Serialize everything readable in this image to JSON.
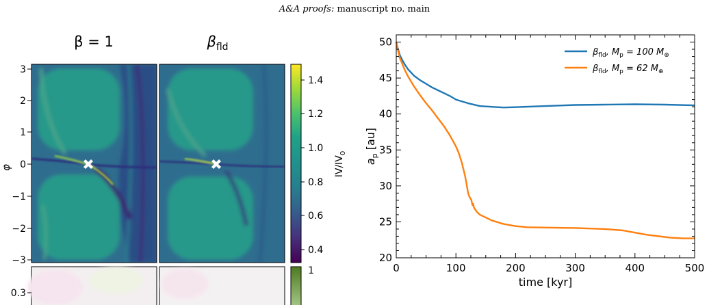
{
  "header": {
    "journal_italic": "A&A proofs:",
    "manuscript": " manuscript no. main"
  },
  "left_figure": {
    "panel_titles": [
      "β = 1",
      "β"
    ],
    "panel_title_sub": "fld",
    "y_axis_label": "φ",
    "y_ticks": [
      "3",
      "2",
      "1",
      "0",
      "−1",
      "−2",
      "−3"
    ],
    "lower_y_tick": "0.3",
    "colorbar_label": "IV/IV",
    "colorbar_label_sub": "0",
    "colorbar_ticks": [
      "1.4",
      "1.2",
      "1.0",
      "0.8",
      "0.6",
      "0.4"
    ],
    "lower_colorbar_tick": "1",
    "colors": {
      "viridis_low": "#440154",
      "viridis_mid": "#21908c",
      "viridis_high": "#fde725",
      "planet_marker": "#ffffff"
    }
  },
  "chart_data": {
    "type": "line",
    "xlabel": "time [kyr]",
    "ylabel_main": "a",
    "ylabel_sub": "p",
    "ylabel_unit": " [au]",
    "xlim": [
      0,
      500
    ],
    "ylim": [
      20,
      51
    ],
    "x_ticks": [
      0,
      100,
      200,
      300,
      400,
      500
    ],
    "y_ticks": [
      20,
      25,
      30,
      35,
      40,
      45,
      50
    ],
    "legend_placement": "top-right",
    "series": [
      {
        "legend_beta": "β",
        "legend_sub": "fld",
        "legend_mass": ", M",
        "legend_mass_sub": "p",
        "legend_value": " = 100 M",
        "legend_unit": "⊕",
        "color": "#1f77b4",
        "x": [
          0,
          3,
          6,
          10,
          15,
          20,
          30,
          40,
          50,
          60,
          70,
          80,
          90,
          100,
          120,
          140,
          160,
          180,
          200,
          250,
          300,
          350,
          400,
          450,
          500
        ],
        "y": [
          50,
          49.0,
          48.2,
          47.5,
          46.8,
          46.2,
          45.3,
          44.7,
          44.2,
          43.7,
          43.3,
          42.9,
          42.5,
          42.0,
          41.5,
          41.1,
          41.0,
          40.9,
          40.95,
          41.1,
          41.25,
          41.3,
          41.35,
          41.3,
          41.2
        ]
      },
      {
        "legend_beta": "β",
        "legend_sub": "fld",
        "legend_mass": ", M",
        "legend_mass_sub": "p",
        "legend_value": " = 62 M",
        "legend_unit": "⊕",
        "color": "#ff7f0e",
        "x": [
          0,
          3,
          6,
          10,
          15,
          20,
          30,
          40,
          50,
          60,
          70,
          80,
          90,
          100,
          105,
          110,
          115,
          118,
          120,
          122,
          124,
          126,
          127,
          128,
          129,
          130,
          135,
          140,
          150,
          160,
          180,
          200,
          220,
          250,
          300,
          350,
          380,
          400,
          420,
          440,
          460,
          480,
          500
        ],
        "y": [
          50,
          48.8,
          47.8,
          47.0,
          46.0,
          45.2,
          43.8,
          42.6,
          41.5,
          40.5,
          39.4,
          38.3,
          37.0,
          35.5,
          34.5,
          33.2,
          31.5,
          30.2,
          29.2,
          28.6,
          28.3,
          28.0,
          27.6,
          27.3,
          27.5,
          27.0,
          26.4,
          26.0,
          25.6,
          25.2,
          24.7,
          24.4,
          24.25,
          24.2,
          24.15,
          24.0,
          23.8,
          23.5,
          23.2,
          23.0,
          22.8,
          22.7,
          22.7
        ]
      }
    ]
  }
}
